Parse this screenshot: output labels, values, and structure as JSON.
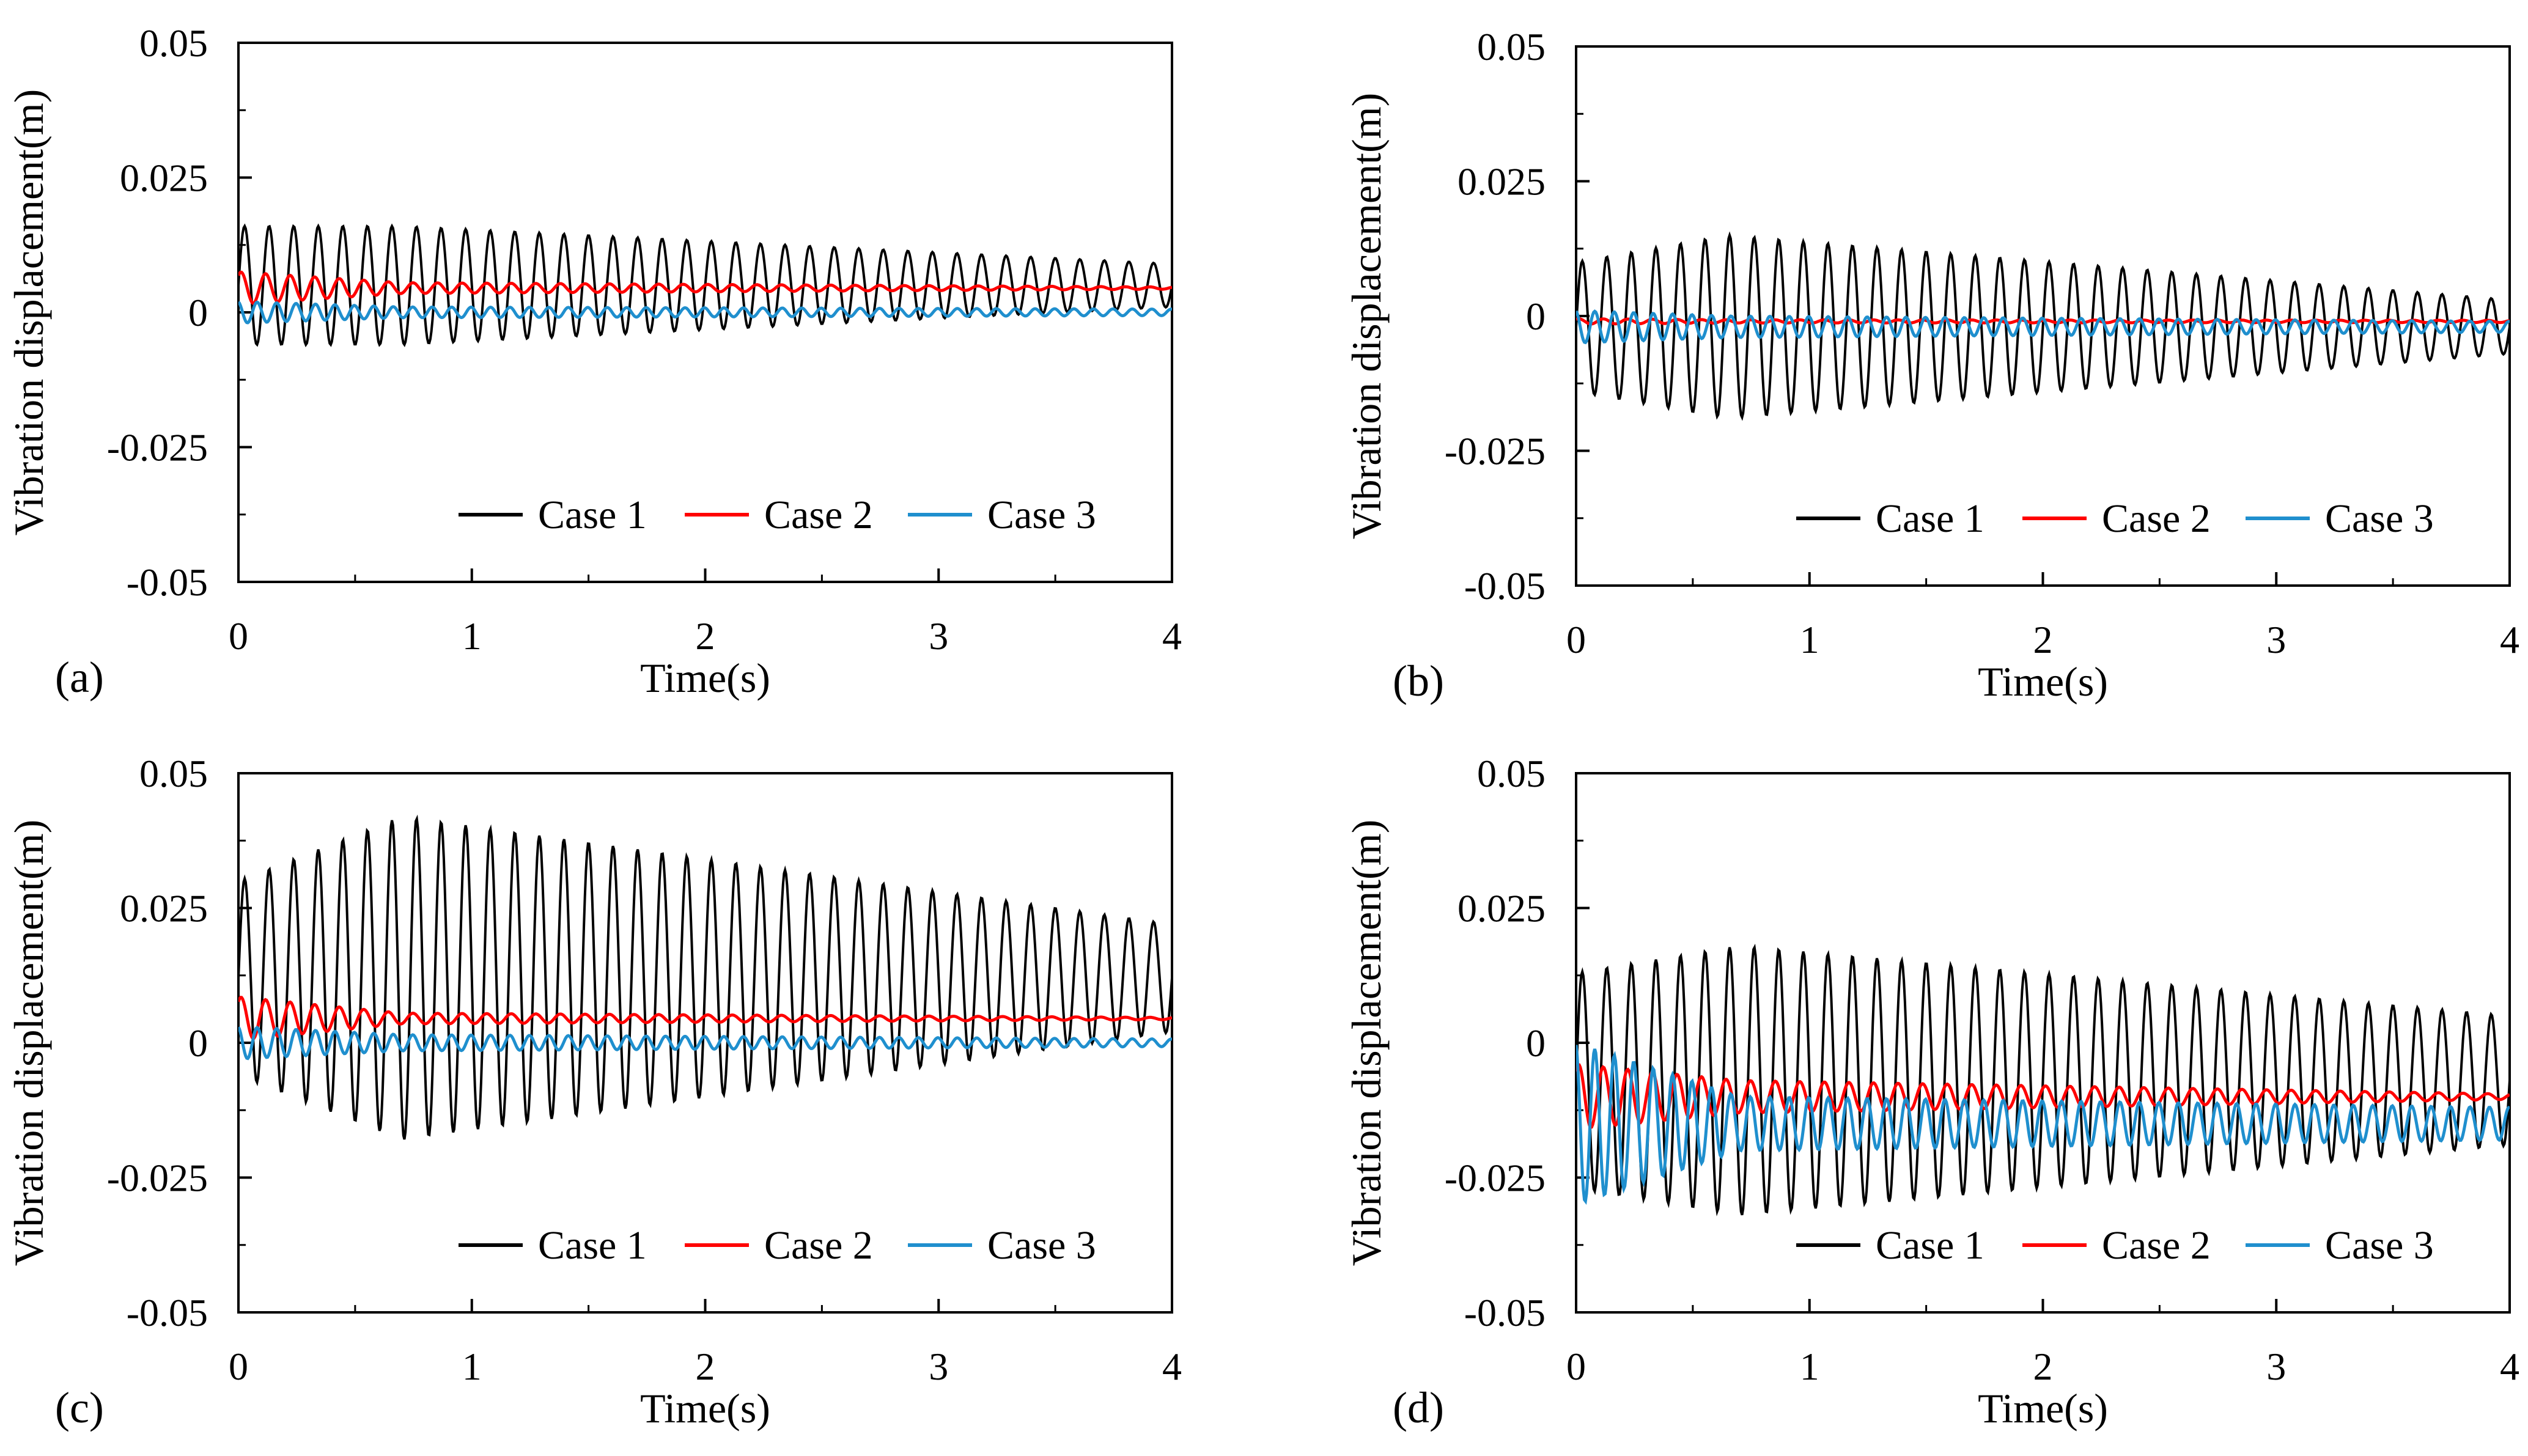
{
  "chart_data": [
    {
      "panel_label": "(a)",
      "type": "line",
      "xlabel": "Time(s)",
      "ylabel": "Vibration displacement(m)",
      "xlim": [
        0,
        4
      ],
      "ylim": [
        -0.05,
        0.05
      ],
      "xticks": [
        0,
        1,
        2,
        3,
        4
      ],
      "xtick_labels": [
        "0",
        "1",
        "2",
        "3",
        "4"
      ],
      "yticks": [
        0.05,
        0.025,
        0,
        -0.025,
        -0.05
      ],
      "ytick_labels": [
        "0.05",
        "0.025",
        "0",
        "-0.025",
        "-0.05"
      ],
      "legend": [
        "Case 1",
        "Case 2",
        "Case 3"
      ],
      "series": [
        {
          "name": "Case 1",
          "color": "#000000",
          "mean": 0.005,
          "amp_start": 0.011,
          "amp_peak": 0.011,
          "peak_t": 0.7,
          "amp_end": 0.004,
          "freq": 9.5
        },
        {
          "name": "Case 2",
          "color": "#ff0000",
          "mean": 0.0045,
          "amp_start": 0.003,
          "amp_peak": 0.001,
          "peak_t": 0.7,
          "amp_end": 0.0002,
          "freq": 9.5
        },
        {
          "name": "Case 3",
          "color": "#1f8fce",
          "mean": 0.0,
          "amp_start": 0.002,
          "amp_peak": 0.001,
          "peak_t": 0.7,
          "amp_end": 0.0006,
          "freq": 12
        }
      ]
    },
    {
      "panel_label": "(b)",
      "type": "line",
      "xlabel": "Time(s)",
      "ylabel": "Vibration displacement(m)",
      "xlim": [
        0,
        4
      ],
      "ylim": [
        -0.05,
        0.05
      ],
      "xticks": [
        0,
        1,
        2,
        3,
        4
      ],
      "xtick_labels": [
        "0",
        "1",
        "2",
        "3",
        "4"
      ],
      "yticks": [
        0.05,
        0.025,
        0,
        -0.025,
        -0.05
      ],
      "ytick_labels": [
        "0.05",
        "0.025",
        "0",
        "-0.025",
        "-0.05"
      ],
      "legend": [
        "Case 1",
        "Case 2",
        "Case 3"
      ],
      "series": [
        {
          "name": "Case 1",
          "color": "#000000",
          "mean": -0.002,
          "amp_start": 0.012,
          "amp_peak": 0.017,
          "peak_t": 0.65,
          "amp_end": 0.005,
          "freq": 9.5
        },
        {
          "name": "Case 2",
          "color": "#ff0000",
          "mean": -0.001,
          "amp_start": 0.0005,
          "amp_peak": 0.0003,
          "peak_t": 0.65,
          "amp_end": 0.0002,
          "freq": 9.5
        },
        {
          "name": "Case 3",
          "color": "#1f8fce",
          "mean": -0.002,
          "amp_start": 0.003,
          "amp_peak": 0.002,
          "peak_t": 0.65,
          "amp_end": 0.001,
          "freq": 12
        }
      ]
    },
    {
      "panel_label": "(c)",
      "type": "line",
      "xlabel": "Time(s)",
      "ylabel": "Vibration displacement(m)",
      "xlim": [
        0,
        4
      ],
      "ylim": [
        -0.05,
        0.05
      ],
      "xticks": [
        0,
        1,
        2,
        3,
        4
      ],
      "xtick_labels": [
        "0",
        "1",
        "2",
        "3",
        "4"
      ],
      "yticks": [
        0.05,
        0.025,
        0,
        -0.025,
        -0.05
      ],
      "ytick_labels": [
        "0.05",
        "0.025",
        "0",
        "-0.025",
        "-0.05"
      ],
      "legend": [
        "Case 1",
        "Case 2",
        "Case 3"
      ],
      "series": [
        {
          "name": "Case 1",
          "color": "#000000",
          "mean": 0.012,
          "amp_start": 0.018,
          "amp_peak": 0.03,
          "peak_t": 0.7,
          "amp_end": 0.01,
          "freq": 9.5
        },
        {
          "name": "Case 2",
          "color": "#ff0000",
          "mean": 0.0045,
          "amp_start": 0.004,
          "amp_peak": 0.001,
          "peak_t": 0.7,
          "amp_end": 0.0002,
          "freq": 9.5
        },
        {
          "name": "Case 3",
          "color": "#1f8fce",
          "mean": 0.0,
          "amp_start": 0.003,
          "amp_peak": 0.0015,
          "peak_t": 0.7,
          "amp_end": 0.0007,
          "freq": 12
        }
      ]
    },
    {
      "panel_label": "(d)",
      "type": "line",
      "xlabel": "Time(s)",
      "ylabel": "Vibration displacement(m)",
      "xlim": [
        0,
        4
      ],
      "ylim": [
        -0.05,
        0.05
      ],
      "xticks": [
        0,
        1,
        2,
        3,
        4
      ],
      "xtick_labels": [
        "0",
        "1",
        "2",
        "3",
        "4"
      ],
      "yticks": [
        0.05,
        0.025,
        0,
        -0.025,
        -0.05
      ],
      "ytick_labels": [
        "0.05",
        "0.025",
        "0",
        "-0.025",
        "-0.05"
      ],
      "legend": [
        "Case 1",
        "Case 2",
        "Case 3"
      ],
      "series": [
        {
          "name": "Case 1",
          "color": "#000000",
          "mean": -0.007,
          "amp_start": 0.02,
          "amp_peak": 0.025,
          "peak_t": 0.7,
          "amp_end": 0.012,
          "freq": 9.5
        },
        {
          "name": "Case 2",
          "color": "#ff0000",
          "mean": -0.01,
          "amp_start": 0.006,
          "amp_peak": 0.003,
          "peak_t": 0.7,
          "amp_end": 0.0005,
          "freq": 9.5
        },
        {
          "name": "Case 3",
          "color": "#1f8fce",
          "mean": -0.015,
          "amp_start": 0.015,
          "amp_peak": 0.005,
          "peak_t": 0.7,
          "amp_end": 0.003,
          "freq": 12
        }
      ]
    }
  ]
}
